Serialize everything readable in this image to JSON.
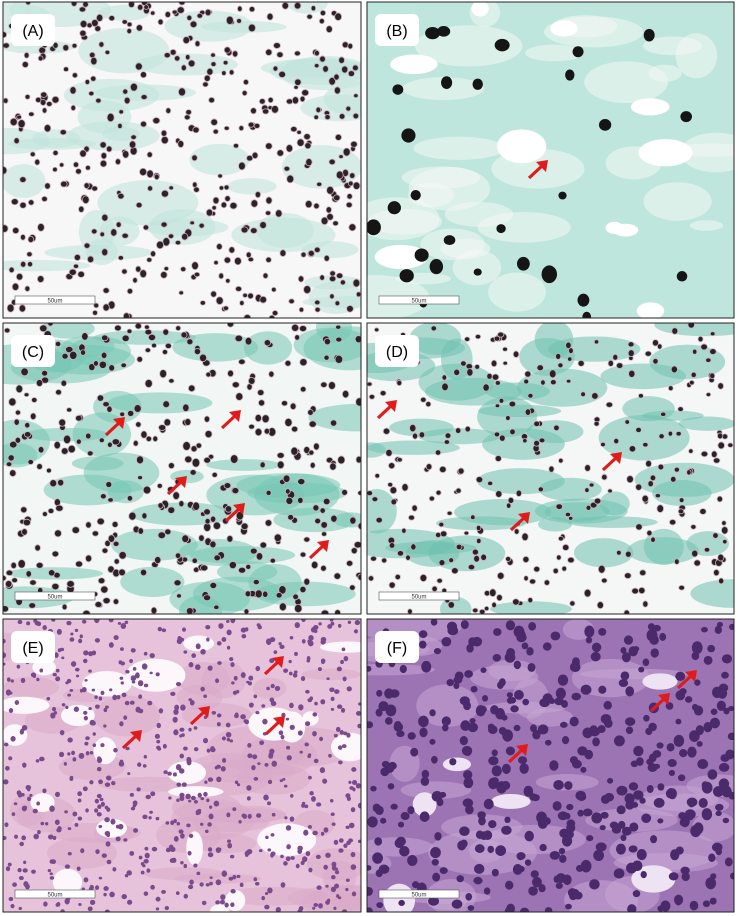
{
  "panels": [
    {
      "label": "(A)",
      "scale_bar": "50um"
    },
    {
      "label": "(B)",
      "scale_bar": "50um"
    },
    {
      "label": "(C)",
      "scale_bar": "50um"
    },
    {
      "label": "(D)",
      "scale_bar": "50um"
    },
    {
      "label": "(E)",
      "scale_bar": "50um"
    },
    {
      "label": "(F)",
      "scale_bar": "50um"
    }
  ]
}
